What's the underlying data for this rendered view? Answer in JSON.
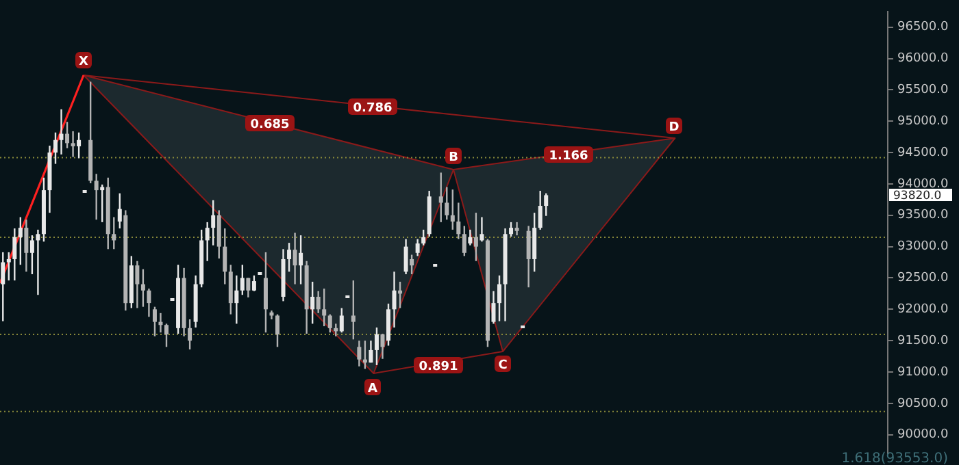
{
  "chart_data": {
    "type": "candlestick",
    "categories": [
      null,
      null,
      null,
      null,
      null,
      null,
      null,
      null,
      null,
      null,
      null,
      null,
      null,
      null,
      null,
      null,
      null,
      null,
      null,
      null,
      null,
      null,
      null,
      null,
      null,
      null,
      null,
      null,
      null,
      null,
      null,
      null,
      null,
      null,
      null,
      null,
      null,
      null,
      null,
      null,
      null,
      null,
      null,
      null,
      null,
      null,
      null,
      null,
      null,
      null,
      null,
      null,
      null,
      null,
      null,
      null,
      null,
      null,
      null,
      null,
      null,
      null,
      null,
      null,
      null,
      null,
      null,
      null,
      null,
      null,
      null,
      null,
      null,
      null,
      null,
      null,
      null,
      null,
      null,
      null,
      null,
      null,
      null,
      null,
      null,
      null,
      null,
      null,
      null,
      null,
      null,
      null,
      null,
      null,
      null,
      null,
      null,
      null,
      null,
      null,
      null,
      null,
      null,
      null,
      null,
      null,
      null,
      null,
      null,
      null,
      null,
      null,
      null,
      null,
      null,
      null,
      null,
      null,
      null,
      null,
      null,
      null,
      null,
      null,
      null,
      null,
      null,
      null,
      null,
      null,
      null,
      null,
      null,
      null,
      null,
      null,
      null,
      null,
      null,
      null,
      null,
      null,
      null,
      null,
      null,
      null,
      null,
      null,
      null,
      null,
      null,
      null
    ],
    "ohlc": [
      [
        92400,
        92910,
        91810,
        92750
      ],
      [
        92750,
        92910,
        92460,
        92800
      ],
      [
        92800,
        93290,
        92460,
        93150
      ],
      [
        93150,
        93470,
        92710,
        93300
      ],
      [
        93300,
        93430,
        92600,
        92900
      ],
      [
        92900,
        93180,
        92560,
        93100
      ],
      [
        93100,
        93270,
        92230,
        93200
      ],
      [
        93200,
        94100,
        93080,
        93900
      ],
      [
        93900,
        94610,
        93540,
        94500
      ],
      [
        94500,
        94820,
        94320,
        94700
      ],
      [
        94700,
        95190,
        94470,
        94800
      ],
      [
        94800,
        94990,
        94570,
        94650
      ],
      [
        94650,
        94840,
        94430,
        94600
      ],
      [
        94600,
        94820,
        94410,
        94700
      ],
      [
        93890,
        93890,
        93890,
        93890
      ],
      [
        94700,
        95630,
        94010,
        94050
      ],
      [
        94050,
        94160,
        93430,
        93900
      ],
      [
        93900,
        93990,
        93390,
        93950
      ],
      [
        93950,
        94100,
        92960,
        93200
      ],
      [
        93200,
        93470,
        92960,
        93100
      ],
      [
        93400,
        93850,
        93290,
        93600
      ],
      [
        93500,
        93580,
        91980,
        92100
      ],
      [
        92100,
        92850,
        92020,
        92700
      ],
      [
        92700,
        92770,
        92020,
        92400
      ],
      [
        92400,
        92640,
        92040,
        92300
      ],
      [
        92300,
        92330,
        91880,
        92100
      ],
      [
        92000,
        92040,
        91570,
        91800
      ],
      [
        91800,
        91940,
        91630,
        91750
      ],
      [
        91750,
        91770,
        91400,
        91600
      ],
      [
        92150,
        92150,
        92150,
        92150
      ],
      [
        91700,
        92710,
        91610,
        92500
      ],
      [
        92500,
        92660,
        91570,
        91700
      ],
      [
        91700,
        91840,
        91360,
        91500
      ],
      [
        91800,
        92540,
        91710,
        92400
      ],
      [
        92400,
        93270,
        92350,
        93100
      ],
      [
        93100,
        93390,
        92770,
        93300
      ],
      [
        93300,
        93740,
        93020,
        93500
      ],
      [
        93500,
        93580,
        92810,
        93000
      ],
      [
        93000,
        93290,
        92400,
        92600
      ],
      [
        92600,
        92710,
        91920,
        92100
      ],
      [
        92100,
        92540,
        91770,
        92300
      ],
      [
        92300,
        92710,
        92230,
        92500
      ],
      [
        92500,
        92500,
        92190,
        92300
      ],
      [
        92300,
        92540,
        92290,
        92450
      ],
      [
        92580,
        92580,
        92580,
        92580
      ],
      [
        92500,
        92910,
        91630,
        92000
      ],
      [
        91950,
        91980,
        91840,
        91900
      ],
      [
        91900,
        91920,
        91400,
        91600
      ],
      [
        92200,
        92960,
        92130,
        92800
      ],
      [
        92800,
        93060,
        92600,
        92950
      ],
      [
        92950,
        93220,
        92400,
        92700
      ],
      [
        92700,
        93180,
        92400,
        92900
      ],
      [
        92700,
        92770,
        91610,
        92000
      ],
      [
        92000,
        92440,
        91770,
        92200
      ],
      [
        92200,
        92290,
        91940,
        92000
      ],
      [
        92000,
        92330,
        91730,
        91900
      ],
      [
        91900,
        91920,
        91630,
        91700
      ],
      [
        91700,
        91770,
        91570,
        91650
      ],
      [
        91650,
        92020,
        91630,
        91900
      ],
      [
        92190,
        92190,
        92190,
        92190
      ],
      [
        91900,
        92460,
        91520,
        91800
      ],
      [
        91400,
        91500,
        91090,
        91200
      ],
      [
        91200,
        91500,
        91050,
        91150
      ],
      [
        91150,
        91500,
        91150,
        91350
      ],
      [
        91350,
        91710,
        91110,
        91600
      ],
      [
        91600,
        91610,
        91210,
        91400
      ],
      [
        91500,
        92090,
        91420,
        92000
      ],
      [
        92000,
        92600,
        91710,
        92300
      ],
      [
        92300,
        92440,
        92020,
        92250
      ],
      [
        92600,
        93120,
        92560,
        93000
      ],
      [
        92800,
        92870,
        92560,
        92700
      ],
      [
        92900,
        93120,
        92850,
        93050
      ],
      [
        93050,
        93270,
        93020,
        93150
      ],
      [
        93200,
        93890,
        93160,
        93800
      ],
      [
        92710,
        92710,
        92710,
        92710
      ],
      [
        93800,
        94180,
        93390,
        93700
      ],
      [
        93700,
        93950,
        93430,
        93500
      ],
      [
        93500,
        93910,
        93270,
        93400
      ],
      [
        93400,
        93700,
        93120,
        93200
      ],
      [
        93200,
        93330,
        92850,
        92900
      ],
      [
        93050,
        93270,
        93020,
        93150
      ],
      [
        93150,
        93540,
        92770,
        93000
      ],
      [
        93100,
        93470,
        93080,
        93200
      ],
      [
        93100,
        93120,
        91400,
        91500
      ],
      [
        91800,
        92290,
        91770,
        92100
      ],
      [
        92100,
        92540,
        91810,
        92400
      ],
      [
        92400,
        93290,
        91810,
        93200
      ],
      [
        93200,
        93390,
        93160,
        93300
      ],
      [
        93300,
        93390,
        93180,
        93250
      ],
      [
        91710,
        91710,
        91710,
        91710
      ],
      [
        93250,
        93330,
        92350,
        92800
      ],
      [
        92800,
        93540,
        92600,
        93300
      ],
      [
        93300,
        93890,
        93270,
        93650
      ],
      [
        93650,
        93850,
        93490,
        93820
      ],
      null,
      null,
      null,
      null,
      null,
      null,
      null,
      null,
      null,
      null,
      null,
      null,
      null,
      null,
      null,
      null,
      null,
      null,
      null,
      null,
      null,
      null,
      null,
      null,
      null,
      null,
      null,
      null,
      null,
      null,
      null,
      null,
      null,
      null,
      null,
      null,
      null,
      null,
      null,
      null,
      null,
      null,
      null,
      null,
      null,
      null,
      null,
      null,
      null,
      null,
      null,
      null,
      null,
      null,
      null,
      null,
      null,
      null
    ],
    "colors": [
      "#e8e8e8",
      "#e8e8e8",
      "#e8e8e8",
      "#e8e8e8",
      "#b4b4b4",
      "#e8e8e8",
      "#e8e8e8",
      "#e8e8e8",
      "#e8e8e8",
      "#e8e8e8",
      "#e8e8e8",
      "#b4b4b4",
      "#b4b4b4",
      "#e8e8e8",
      "#e8e8e8",
      "#b4b4b4",
      "#b4b4b4",
      "#e8e8e8",
      "#b4b4b4",
      "#b4b4b4",
      "#e8e8e8",
      "#b4b4b4",
      "#e8e8e8",
      "#b4b4b4",
      "#b4b4b4",
      "#b4b4b4",
      "#b4b4b4",
      "#b4b4b4",
      "#b4b4b4",
      "#e8e8e8",
      "#e8e8e8",
      "#b4b4b4",
      "#b4b4b4",
      "#e8e8e8",
      "#e8e8e8",
      "#e8e8e8",
      "#e8e8e8",
      "#b4b4b4",
      "#b4b4b4",
      "#b4b4b4",
      "#e8e8e8",
      "#e8e8e8",
      "#b4b4b4",
      "#e8e8e8",
      "#e8e8e8",
      "#b4b4b4",
      "#b4b4b4",
      "#b4b4b4",
      "#e8e8e8",
      "#e8e8e8",
      "#b4b4b4",
      "#e8e8e8",
      "#b4b4b4",
      "#e8e8e8",
      "#b4b4b4",
      "#b4b4b4",
      "#b4b4b4",
      "#b4b4b4",
      "#e8e8e8",
      "#e8e8e8",
      "#b4b4b4",
      "#b4b4b4",
      "#b4b4b4",
      "#e8e8e8",
      "#e8e8e8",
      "#b4b4b4",
      "#e8e8e8",
      "#e8e8e8",
      "#b4b4b4",
      "#e8e8e8",
      "#b4b4b4",
      "#e8e8e8",
      "#e8e8e8",
      "#e8e8e8",
      "#e8e8e8",
      "#b4b4b4",
      "#b4b4b4",
      "#b4b4b4",
      "#b4b4b4",
      "#b4b4b4",
      "#e8e8e8",
      "#b4b4b4",
      "#e8e8e8",
      "#b4b4b4",
      "#e8e8e8",
      "#e8e8e8",
      "#e8e8e8",
      "#e8e8e8",
      "#b4b4b4",
      "#e8e8e8",
      "#b4b4b4",
      "#e8e8e8",
      "#e8e8e8",
      "#e8e8e8",
      null,
      null,
      null,
      null,
      null,
      null,
      null,
      null,
      null,
      null,
      null,
      null,
      null,
      null,
      null,
      null,
      null,
      null,
      null,
      null,
      null,
      null,
      null,
      null,
      null,
      null,
      null,
      null,
      null,
      null,
      null,
      null,
      null,
      null,
      null,
      null,
      null,
      null,
      null,
      null,
      null,
      null,
      null,
      null,
      null,
      null,
      null,
      null,
      null,
      null,
      null,
      null,
      null,
      null,
      null,
      null,
      null,
      null
    ],
    "ylim": [
      89700,
      96750
    ],
    "yticks": [
      {
        "value": 90000,
        "label": "90000.0"
      },
      {
        "value": 90500,
        "label": "90500.0"
      },
      {
        "value": 91000,
        "label": "91000.0"
      },
      {
        "value": 91500,
        "label": "91500.0"
      },
      {
        "value": 92000,
        "label": "92000.0"
      },
      {
        "value": 92500,
        "label": "92500.0"
      },
      {
        "value": 93000,
        "label": "93000.0"
      },
      {
        "value": 93500,
        "label": "93500.0"
      },
      {
        "value": 94000,
        "label": "94000.0"
      },
      {
        "value": 94500,
        "label": "94500.0"
      },
      {
        "value": 95000,
        "label": "95000.0"
      },
      {
        "value": 95500,
        "label": "95500.0"
      },
      {
        "value": 96000,
        "label": "96000.0"
      },
      {
        "value": 96500,
        "label": "96500.0"
      }
    ],
    "tick_labels": "y",
    "grid": false,
    "legend": false,
    "ref_lines": [
      {
        "axis": "y",
        "value": 94420,
        "color": "#8a8a3a",
        "line_style": "dotted"
      },
      {
        "axis": "y",
        "value": 93150,
        "color": "#8a8a3a",
        "line_style": "dotted"
      },
      {
        "axis": "y",
        "value": 91600,
        "color": "#8a8a3a",
        "line_style": "dotted"
      },
      {
        "axis": "y",
        "value": 90370,
        "color": "#8a8a3a",
        "line_style": "dotted"
      }
    ],
    "annotations": [
      "X",
      "A",
      "B",
      "C",
      "D",
      "0.685",
      "0.786",
      "0.891",
      "1.166",
      "1.618(93553.0)",
      "93820.0"
    ]
  }
}
